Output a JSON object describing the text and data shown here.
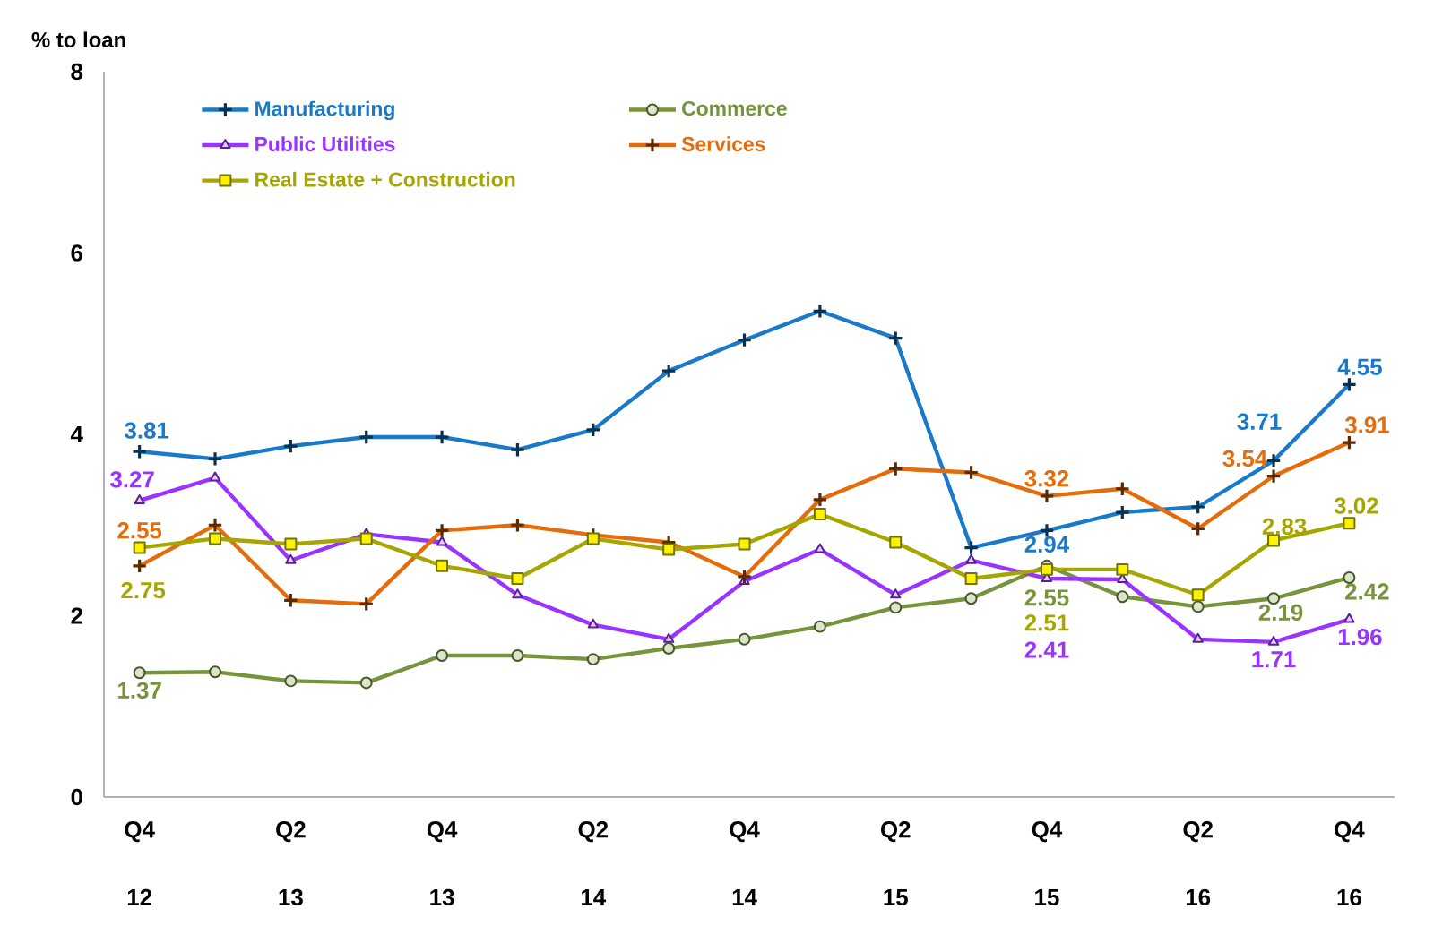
{
  "chart_data": {
    "type": "line",
    "ylabel": "% to loan",
    "categories": [
      "Q4 12",
      null,
      "Q2 13",
      null,
      "Q4 13",
      null,
      "Q2 14",
      null,
      "Q4 14",
      null,
      "Q2 15",
      null,
      "Q4 15",
      null,
      "Q2 16",
      null,
      "Q4 16"
    ],
    "ylim": [
      0,
      8
    ],
    "yticks": [
      0,
      2,
      4,
      6,
      8
    ],
    "grid": false,
    "legend": "top",
    "series": [
      {
        "name": "Manufacturing",
        "color": "#1a7ac9",
        "marker": "cross",
        "values": [
          3.81,
          3.73,
          3.87,
          3.97,
          3.97,
          3.83,
          4.05,
          4.7,
          5.04,
          5.36,
          5.06,
          2.75,
          2.94,
          3.14,
          3.2,
          3.71,
          4.55
        ],
        "value_labels": [
          "3.81",
          null,
          null,
          null,
          null,
          null,
          null,
          null,
          null,
          null,
          null,
          null,
          "2.94",
          null,
          null,
          "3.71",
          "4.55"
        ]
      },
      {
        "name": "Commerce",
        "color": "#77933c",
        "marker": "circle",
        "values": [
          1.37,
          1.38,
          1.28,
          1.26,
          1.56,
          1.56,
          1.52,
          1.64,
          1.74,
          1.88,
          2.09,
          2.19,
          2.55,
          2.21,
          2.1,
          2.19,
          2.42
        ],
        "value_labels": [
          "1.37",
          null,
          null,
          null,
          null,
          null,
          null,
          null,
          null,
          null,
          null,
          null,
          "2.55",
          null,
          null,
          "2.19",
          "2.42"
        ]
      },
      {
        "name": "Public Utilities",
        "color": "#9933ff",
        "marker": "triangle",
        "values": [
          3.27,
          3.52,
          2.61,
          2.9,
          2.81,
          2.23,
          1.9,
          1.74,
          2.38,
          2.73,
          2.23,
          2.61,
          2.41,
          2.4,
          1.74,
          1.71,
          1.96
        ],
        "value_labels": [
          "3.27",
          null,
          null,
          null,
          null,
          null,
          null,
          null,
          null,
          null,
          null,
          null,
          "2.41",
          null,
          null,
          "1.71",
          "1.96"
        ]
      },
      {
        "name": "Services",
        "color": "#e46c0a",
        "marker": "cross",
        "values": [
          2.55,
          3.0,
          2.17,
          2.13,
          2.94,
          3.0,
          2.89,
          2.81,
          2.43,
          3.28,
          3.62,
          3.58,
          3.32,
          3.4,
          2.96,
          3.54,
          3.91
        ],
        "value_labels": [
          "2.55",
          null,
          null,
          null,
          null,
          null,
          null,
          null,
          null,
          null,
          null,
          null,
          "3.32",
          null,
          null,
          "3.54",
          "3.91"
        ]
      },
      {
        "name": "Real Estate + Construction",
        "color": "#a6a600",
        "marker": "square",
        "values": [
          2.75,
          2.85,
          2.79,
          2.85,
          2.55,
          2.41,
          2.85,
          2.73,
          2.79,
          3.12,
          2.81,
          2.41,
          2.51,
          2.51,
          2.23,
          2.83,
          3.02
        ],
        "value_labels": [
          "2.75",
          null,
          null,
          null,
          null,
          null,
          null,
          null,
          null,
          null,
          null,
          null,
          "2.51",
          null,
          null,
          "2.83",
          "3.02"
        ]
      }
    ]
  }
}
